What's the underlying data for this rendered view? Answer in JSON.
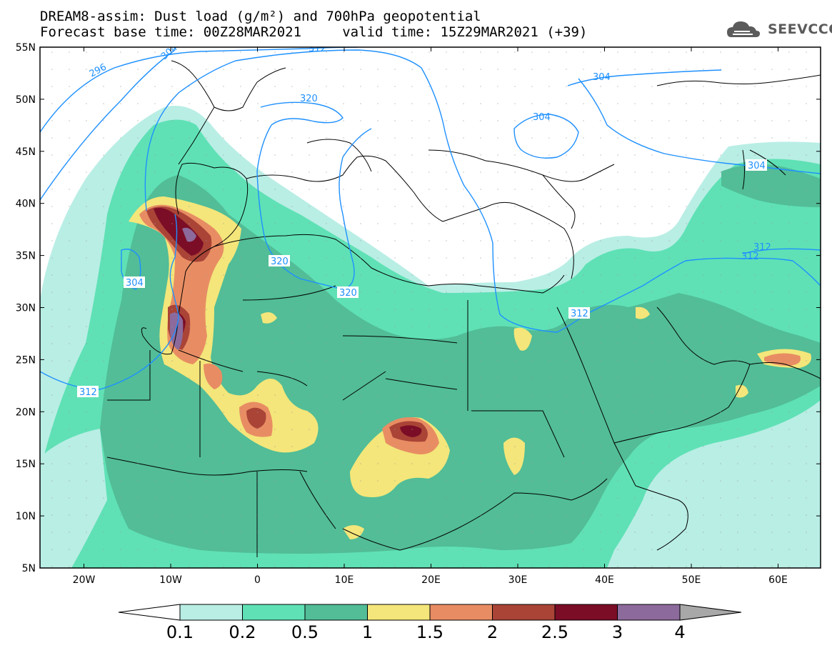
{
  "header": {
    "title_line1": "DREAM8-assim: Dust load (g/m²) and 700hPa geopotential",
    "title_line2": "Forecast base time: 00Z28MAR2021     valid time: 15Z29MAR2021 (+39)"
  },
  "logo": {
    "text": "SEEVCCC",
    "icon": "cloud-icon"
  },
  "axes": {
    "lat_labels": [
      "55N",
      "50N",
      "45N",
      "40N",
      "35N",
      "30N",
      "25N",
      "20N",
      "15N",
      "10N",
      "5N"
    ],
    "lon_labels": [
      "20W",
      "10W",
      "0",
      "10E",
      "20E",
      "30E",
      "40E",
      "50E",
      "60E"
    ]
  },
  "contours": {
    "labels": [
      "296",
      "304",
      "312",
      "320",
      "320",
      "304",
      "312",
      "320",
      "304",
      "304",
      "312",
      "304",
      "312",
      "312",
      "312"
    ]
  },
  "colorbar": {
    "ticks": [
      "0.1",
      "0.2",
      "0.5",
      "1",
      "1.5",
      "2",
      "2.5",
      "3",
      "4"
    ],
    "colors": [
      "#b9eee5",
      "#5fe1b5",
      "#52bd97",
      "#f4e67a",
      "#e88d63",
      "#a94437",
      "#7b0d26",
      "#8c6a9b",
      "#a8a8a8"
    ]
  },
  "colors": {
    "coast": "#000000",
    "contour": "#1e90ff"
  }
}
